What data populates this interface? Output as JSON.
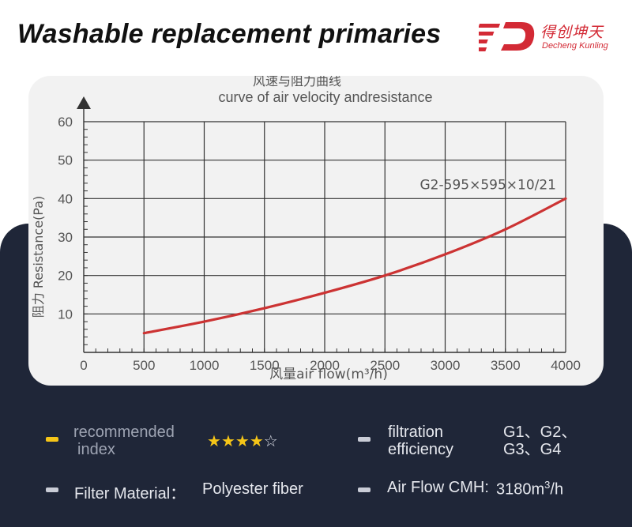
{
  "header": {
    "title": "Washable replacement primaries"
  },
  "logo": {
    "cn": "得创坤天",
    "en": "Decheng Kunling",
    "color": "#d32a35"
  },
  "chart_data": {
    "type": "line",
    "title_cn": "风速与阻力曲线",
    "title_en": "curve of air velocity andresistance",
    "xlabel": "风量air flow(m³/h)",
    "ylabel": "阻力 Resistance(Pa)",
    "xlim": [
      0,
      4000
    ],
    "ylim": [
      0,
      60
    ],
    "x_ticks": [
      0,
      500,
      1000,
      1500,
      2000,
      2500,
      3000,
      3500,
      4000
    ],
    "y_ticks": [
      10,
      20,
      30,
      40,
      50,
      60
    ],
    "grid": true,
    "series": [
      {
        "name": "G2-595×595×10/21",
        "color": "#cc3333",
        "x": [
          500,
          1000,
          1500,
          2000,
          2500,
          3000,
          3500,
          4000
        ],
        "y": [
          5,
          8,
          11.5,
          15.5,
          20,
          25.5,
          32,
          40
        ]
      }
    ]
  },
  "specs": {
    "recommended_label": "recommended index",
    "recommended_line1": "recommended",
    "recommended_line2": "index",
    "stars_filled": 4,
    "stars_total": 5,
    "filtration_line1": "filtration",
    "filtration_line2": "efficiency",
    "filtration_value_line1": "G1、G2、",
    "filtration_value_line2": "G3、G4",
    "material_label": "Filter Material：",
    "material_value": "Polyester fiber",
    "airflow_label": "Air Flow CMH:",
    "airflow_value": "3180m",
    "airflow_sup": "3",
    "airflow_unit": "/h"
  },
  "colors": {
    "panel": "#1f2638",
    "bullet_active": "#f5c518",
    "bullet": "#c9ccd6"
  }
}
